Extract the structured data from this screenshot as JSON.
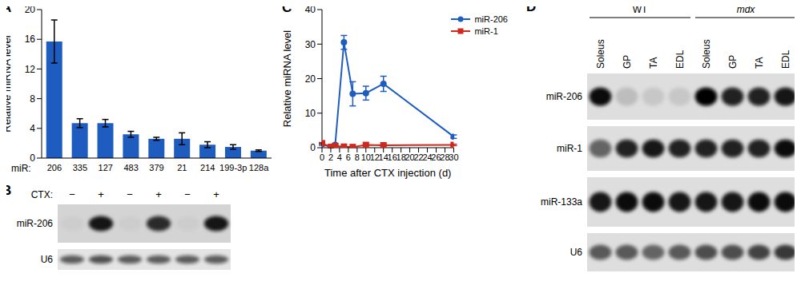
{
  "chart_data": [
    {
      "panel": "A",
      "type": "bar",
      "xlabel": "miR:",
      "ylabel": "Relative miRNA level",
      "categories": [
        "206",
        "335",
        "127",
        "483",
        "379",
        "21",
        "214",
        "199-3p",
        "128a"
      ],
      "values": [
        15.7,
        4.7,
        4.7,
        3.2,
        2.6,
        2.6,
        1.8,
        1.5,
        1.0
      ],
      "errors": [
        2.9,
        0.6,
        0.5,
        0.4,
        0.2,
        0.8,
        0.4,
        0.3,
        0.1
      ],
      "color": "#1f5cbf",
      "ylim": [
        0,
        20
      ],
      "yticks": [
        0,
        2,
        4,
        6,
        8,
        10,
        12,
        14,
        16,
        18,
        20
      ]
    },
    {
      "panel": "C",
      "type": "line",
      "xlabel": "Time after CTX injection (d)",
      "ylabel": "Relative miRNA level",
      "x": [
        0,
        2,
        3,
        5,
        7,
        10,
        14,
        30
      ],
      "series": [
        {
          "name": "miR-206",
          "color": "#1f5cbf",
          "marker": "circle",
          "values": [
            1.0,
            0.2,
            0.8,
            30.5,
            15.6,
            15.8,
            18.5,
            3.2
          ],
          "errors": [
            0.3,
            0.2,
            0.3,
            2.0,
            3.5,
            2.0,
            2.2,
            0.5
          ]
        },
        {
          "name": "miR-1",
          "color": "#d0281c",
          "marker": "square",
          "values": [
            1.3,
            0.2,
            0.5,
            0.3,
            0.2,
            0.8,
            0.7,
            0.8
          ],
          "errors": [
            0.2,
            0.1,
            0.1,
            0.1,
            0.1,
            0.2,
            0.2,
            0.2
          ]
        }
      ],
      "xlim": [
        0,
        30
      ],
      "xticks": [
        0,
        2,
        4,
        6,
        8,
        10,
        12,
        14,
        16,
        18,
        20,
        22,
        24,
        26,
        28,
        30
      ],
      "ylim": [
        0,
        40
      ],
      "yticks": [
        0,
        10,
        20,
        30,
        40
      ],
      "legend": "top-right"
    }
  ],
  "blots": [
    {
      "panel": "B",
      "header": "CTX:",
      "lanes": [
        "−",
        "+",
        "−",
        "+",
        "−",
        "+"
      ],
      "rows": [
        {
          "label": "miR-206",
          "intensity": [
            0.03,
            0.9,
            0.03,
            0.8,
            0.03,
            0.9
          ]
        },
        {
          "label": "U6",
          "intensity": [
            0.6,
            0.65,
            0.6,
            0.6,
            0.6,
            0.6
          ]
        }
      ]
    },
    {
      "panel": "D",
      "groups": [
        {
          "label": "WT",
          "lanes": [
            "Soleus",
            "GP",
            "TA",
            "EDL"
          ]
        },
        {
          "label": "mdx",
          "lanes": [
            "Soleus",
            "GP",
            "TA",
            "EDL"
          ]
        }
      ],
      "rows": [
        {
          "label": "miR-206",
          "intensity": [
            0.95,
            0.15,
            0.1,
            0.1,
            1.0,
            0.85,
            0.85,
            0.9
          ]
        },
        {
          "label": "miR-1",
          "intensity": [
            0.55,
            0.85,
            0.9,
            0.85,
            0.85,
            0.85,
            0.85,
            0.95
          ]
        },
        {
          "label": "miR-133a",
          "intensity": [
            0.9,
            0.95,
            0.95,
            0.9,
            0.9,
            0.9,
            0.95,
            0.95
          ]
        },
        {
          "label": "U6",
          "intensity": [
            0.6,
            0.6,
            0.55,
            0.6,
            0.65,
            0.65,
            0.7,
            0.75
          ]
        }
      ]
    }
  ]
}
